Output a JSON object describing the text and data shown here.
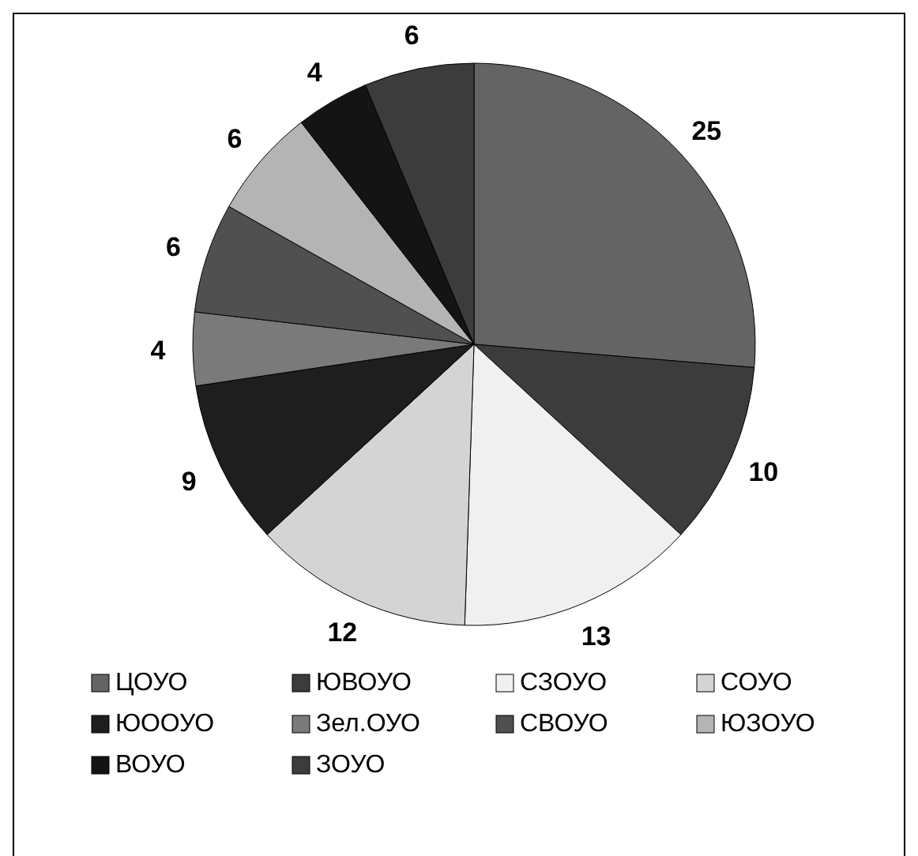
{
  "chart_data": {
    "type": "pie",
    "categories": [
      "ЦОУО",
      "ЮВОУО",
      "СЗОУО",
      "СОУО",
      "ЮООУО",
      "Зел.ОУО",
      "СВОУО",
      "ЮЗОУО",
      "ВОУО",
      "ЗОУО"
    ],
    "values": [
      25,
      10,
      13,
      12,
      9,
      4,
      6,
      6,
      4,
      6
    ],
    "colors": [
      "#646464",
      "#3c3c3c",
      "#f0f0f0",
      "#d4d4d4",
      "#1e1e1e",
      "#7a7a7a",
      "#505050",
      "#b4b4b4",
      "#141414",
      "#3c3c3c"
    ],
    "data_labels": true,
    "legend": "bottom"
  }
}
